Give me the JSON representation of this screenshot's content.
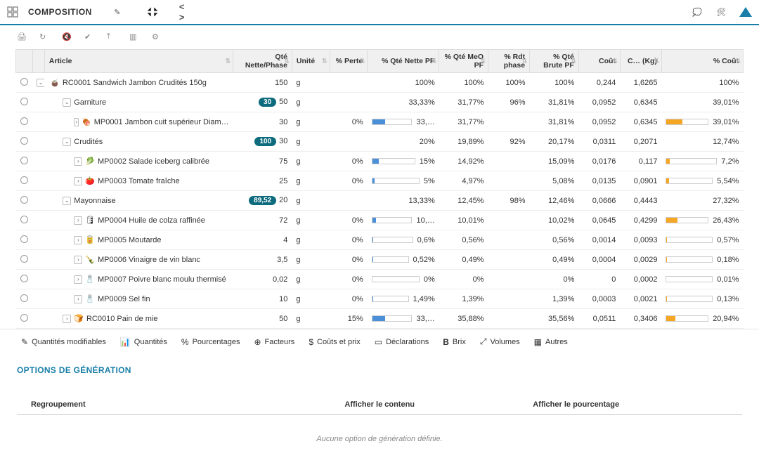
{
  "header": {
    "title": "COMPOSITION"
  },
  "columns": {
    "article": "Article",
    "qte_nette_phase": "Qté Nette/Phase",
    "unite": "Unité",
    "pct_perte": "% Perte",
    "pct_qte_nette_pf": "% Qté Nette PF",
    "pct_qte_meo_pf": "% Qté MeO PF",
    "pct_rdt_phase": "% Rdt phase",
    "pct_qte_brute_pf": "% Qté Brute PF",
    "cout": "Coût",
    "c_kg": "C… (Kg)",
    "pct_cout": "% Coût"
  },
  "rows": [
    {
      "indent": 0,
      "expander": "v",
      "icon": "🧉",
      "label": "RC0001 Sandwich Jambon Crudités 150g",
      "badge": "",
      "qte": "150",
      "unite": "g",
      "perte": "",
      "netpf": "100%",
      "netbar": null,
      "meo": "100%",
      "rdt": "100%",
      "brute": "100%",
      "cout": "0,244",
      "ckg": "1,6265",
      "pcout": "100%",
      "coutbar": null
    },
    {
      "indent": 1,
      "expander": "v",
      "icon": "",
      "label": "Garniture",
      "badge": "30",
      "qte": "50",
      "unite": "g",
      "perte": "",
      "netpf": "33,33%",
      "netbar": null,
      "meo": "31,77%",
      "rdt": "96%",
      "brute": "31,81%",
      "cout": "0,0952",
      "ckg": "0,6345",
      "pcout": "39,01%",
      "coutbar": null
    },
    {
      "indent": 2,
      "expander": ">",
      "icon": "🍖",
      "label": "MP0001 Jambon cuit supérieur Diam…",
      "badge": "",
      "qte": "30",
      "unite": "g",
      "perte": "0%",
      "netpf": "33,…",
      "netbar": 33,
      "meo": "31,77%",
      "rdt": "",
      "brute": "31,81%",
      "cout": "0,0952",
      "ckg": "0,6345",
      "pcout": "39,01%",
      "coutbar": 39
    },
    {
      "indent": 1,
      "expander": "v",
      "icon": "",
      "label": "Crudités",
      "badge": "100",
      "qte": "30",
      "unite": "g",
      "perte": "",
      "netpf": "20%",
      "netbar": null,
      "meo": "19,89%",
      "rdt": "92%",
      "brute": "20,17%",
      "cout": "0,0311",
      "ckg": "0,2071",
      "pcout": "12,74%",
      "coutbar": null
    },
    {
      "indent": 2,
      "expander": ">",
      "icon": "🥬",
      "label": "MP0002 Salade iceberg calibrée",
      "badge": "",
      "qte": "75",
      "unite": "g",
      "perte": "0%",
      "netpf": "15%",
      "netbar": 15,
      "meo": "14,92%",
      "rdt": "",
      "brute": "15,09%",
      "cout": "0,0176",
      "ckg": "0,117",
      "pcout": "7,2%",
      "coutbar": 7
    },
    {
      "indent": 2,
      "expander": ">",
      "icon": "🍅",
      "label": "MP0003 Tomate fraîche",
      "badge": "",
      "qte": "25",
      "unite": "g",
      "perte": "0%",
      "netpf": "5%",
      "netbar": 5,
      "meo": "4,97%",
      "rdt": "",
      "brute": "5,08%",
      "cout": "0,0135",
      "ckg": "0,0901",
      "pcout": "5,54%",
      "coutbar": 5
    },
    {
      "indent": 1,
      "expander": "v",
      "icon": "",
      "label": "Mayonnaise",
      "badge": "89,52",
      "qte": "20",
      "unite": "g",
      "perte": "",
      "netpf": "13,33%",
      "netbar": null,
      "meo": "12,45%",
      "rdt": "98%",
      "brute": "12,46%",
      "cout": "0,0666",
      "ckg": "0,4443",
      "pcout": "27,32%",
      "coutbar": null
    },
    {
      "indent": 2,
      "expander": ">",
      "icon": "🛢",
      "label": "MP0004 Huile de colza raffinée",
      "badge": "",
      "qte": "72",
      "unite": "g",
      "perte": "0%",
      "netpf": "10,…",
      "netbar": 10,
      "meo": "10,01%",
      "rdt": "",
      "brute": "10,02%",
      "cout": "0,0645",
      "ckg": "0,4299",
      "pcout": "26,43%",
      "coutbar": 26
    },
    {
      "indent": 2,
      "expander": ">",
      "icon": "🥫",
      "label": "MP0005 Moutarde",
      "badge": "",
      "qte": "4",
      "unite": "g",
      "perte": "0%",
      "netpf": "0,6%",
      "netbar": 1,
      "meo": "0,56%",
      "rdt": "",
      "brute": "0,56%",
      "cout": "0,0014",
      "ckg": "0,0093",
      "pcout": "0,57%",
      "coutbar": 1
    },
    {
      "indent": 2,
      "expander": ">",
      "icon": "🍾",
      "label": "MP0006 Vinaigre de vin blanc",
      "badge": "",
      "qte": "3,5",
      "unite": "g",
      "perte": "0%",
      "netpf": "0,52%",
      "netbar": 1,
      "meo": "0,49%",
      "rdt": "",
      "brute": "0,49%",
      "cout": "0,0004",
      "ckg": "0,0029",
      "pcout": "0,18%",
      "coutbar": 1
    },
    {
      "indent": 2,
      "expander": ">",
      "icon": "🧂",
      "label": "MP0007 Poivre blanc moulu thermisé",
      "badge": "",
      "qte": "0,02",
      "unite": "g",
      "perte": "0%",
      "netpf": "0%",
      "netbar": 0,
      "meo": "0%",
      "rdt": "",
      "brute": "0%",
      "cout": "0",
      "ckg": "0,0002",
      "pcout": "0,01%",
      "coutbar": 0
    },
    {
      "indent": 2,
      "expander": ">",
      "icon": "🧂",
      "label": "MP0009 Sel fin",
      "badge": "",
      "qte": "10",
      "unite": "g",
      "perte": "0%",
      "netpf": "1,49%",
      "netbar": 2,
      "meo": "1,39%",
      "rdt": "",
      "brute": "1,39%",
      "cout": "0,0003",
      "ckg": "0,0021",
      "pcout": "0,13%",
      "coutbar": 1
    },
    {
      "indent": 1,
      "expander": ">",
      "icon": "🍞",
      "label": "RC0010 Pain de mie",
      "badge": "",
      "qte": "50",
      "unite": "g",
      "perte": "15%",
      "netpf": "33,…",
      "netbar": 33,
      "meo": "35,88%",
      "rdt": "",
      "brute": "35,56%",
      "cout": "0,0511",
      "ckg": "0,3406",
      "pcout": "20,94%",
      "coutbar": 21
    }
  ],
  "barColors": {
    "net": "#4a90d9",
    "cout": "#f5a623"
  },
  "footerTabs": [
    {
      "icon": "✎",
      "label": "Quantités modifiables"
    },
    {
      "icon": "📊",
      "label": "Quantités"
    },
    {
      "icon": "%",
      "label": "Pourcentages"
    },
    {
      "icon": "⊕",
      "label": "Facteurs"
    },
    {
      "icon": "$",
      "label": "Coûts et prix"
    },
    {
      "icon": "▭",
      "label": "Déclarations"
    },
    {
      "icon": "B",
      "label": "Brix",
      "bold": true
    },
    {
      "icon": "⤢",
      "label": "Volumes"
    },
    {
      "icon": "▦",
      "label": "Autres"
    }
  ],
  "options": {
    "title": "OPTIONS DE GÉNÉRATION",
    "cols": {
      "c1": "Regroupement",
      "c2": "Afficher le contenu",
      "c3": "Afficher le pourcentage"
    },
    "empty": "Aucune option de génération définie."
  }
}
